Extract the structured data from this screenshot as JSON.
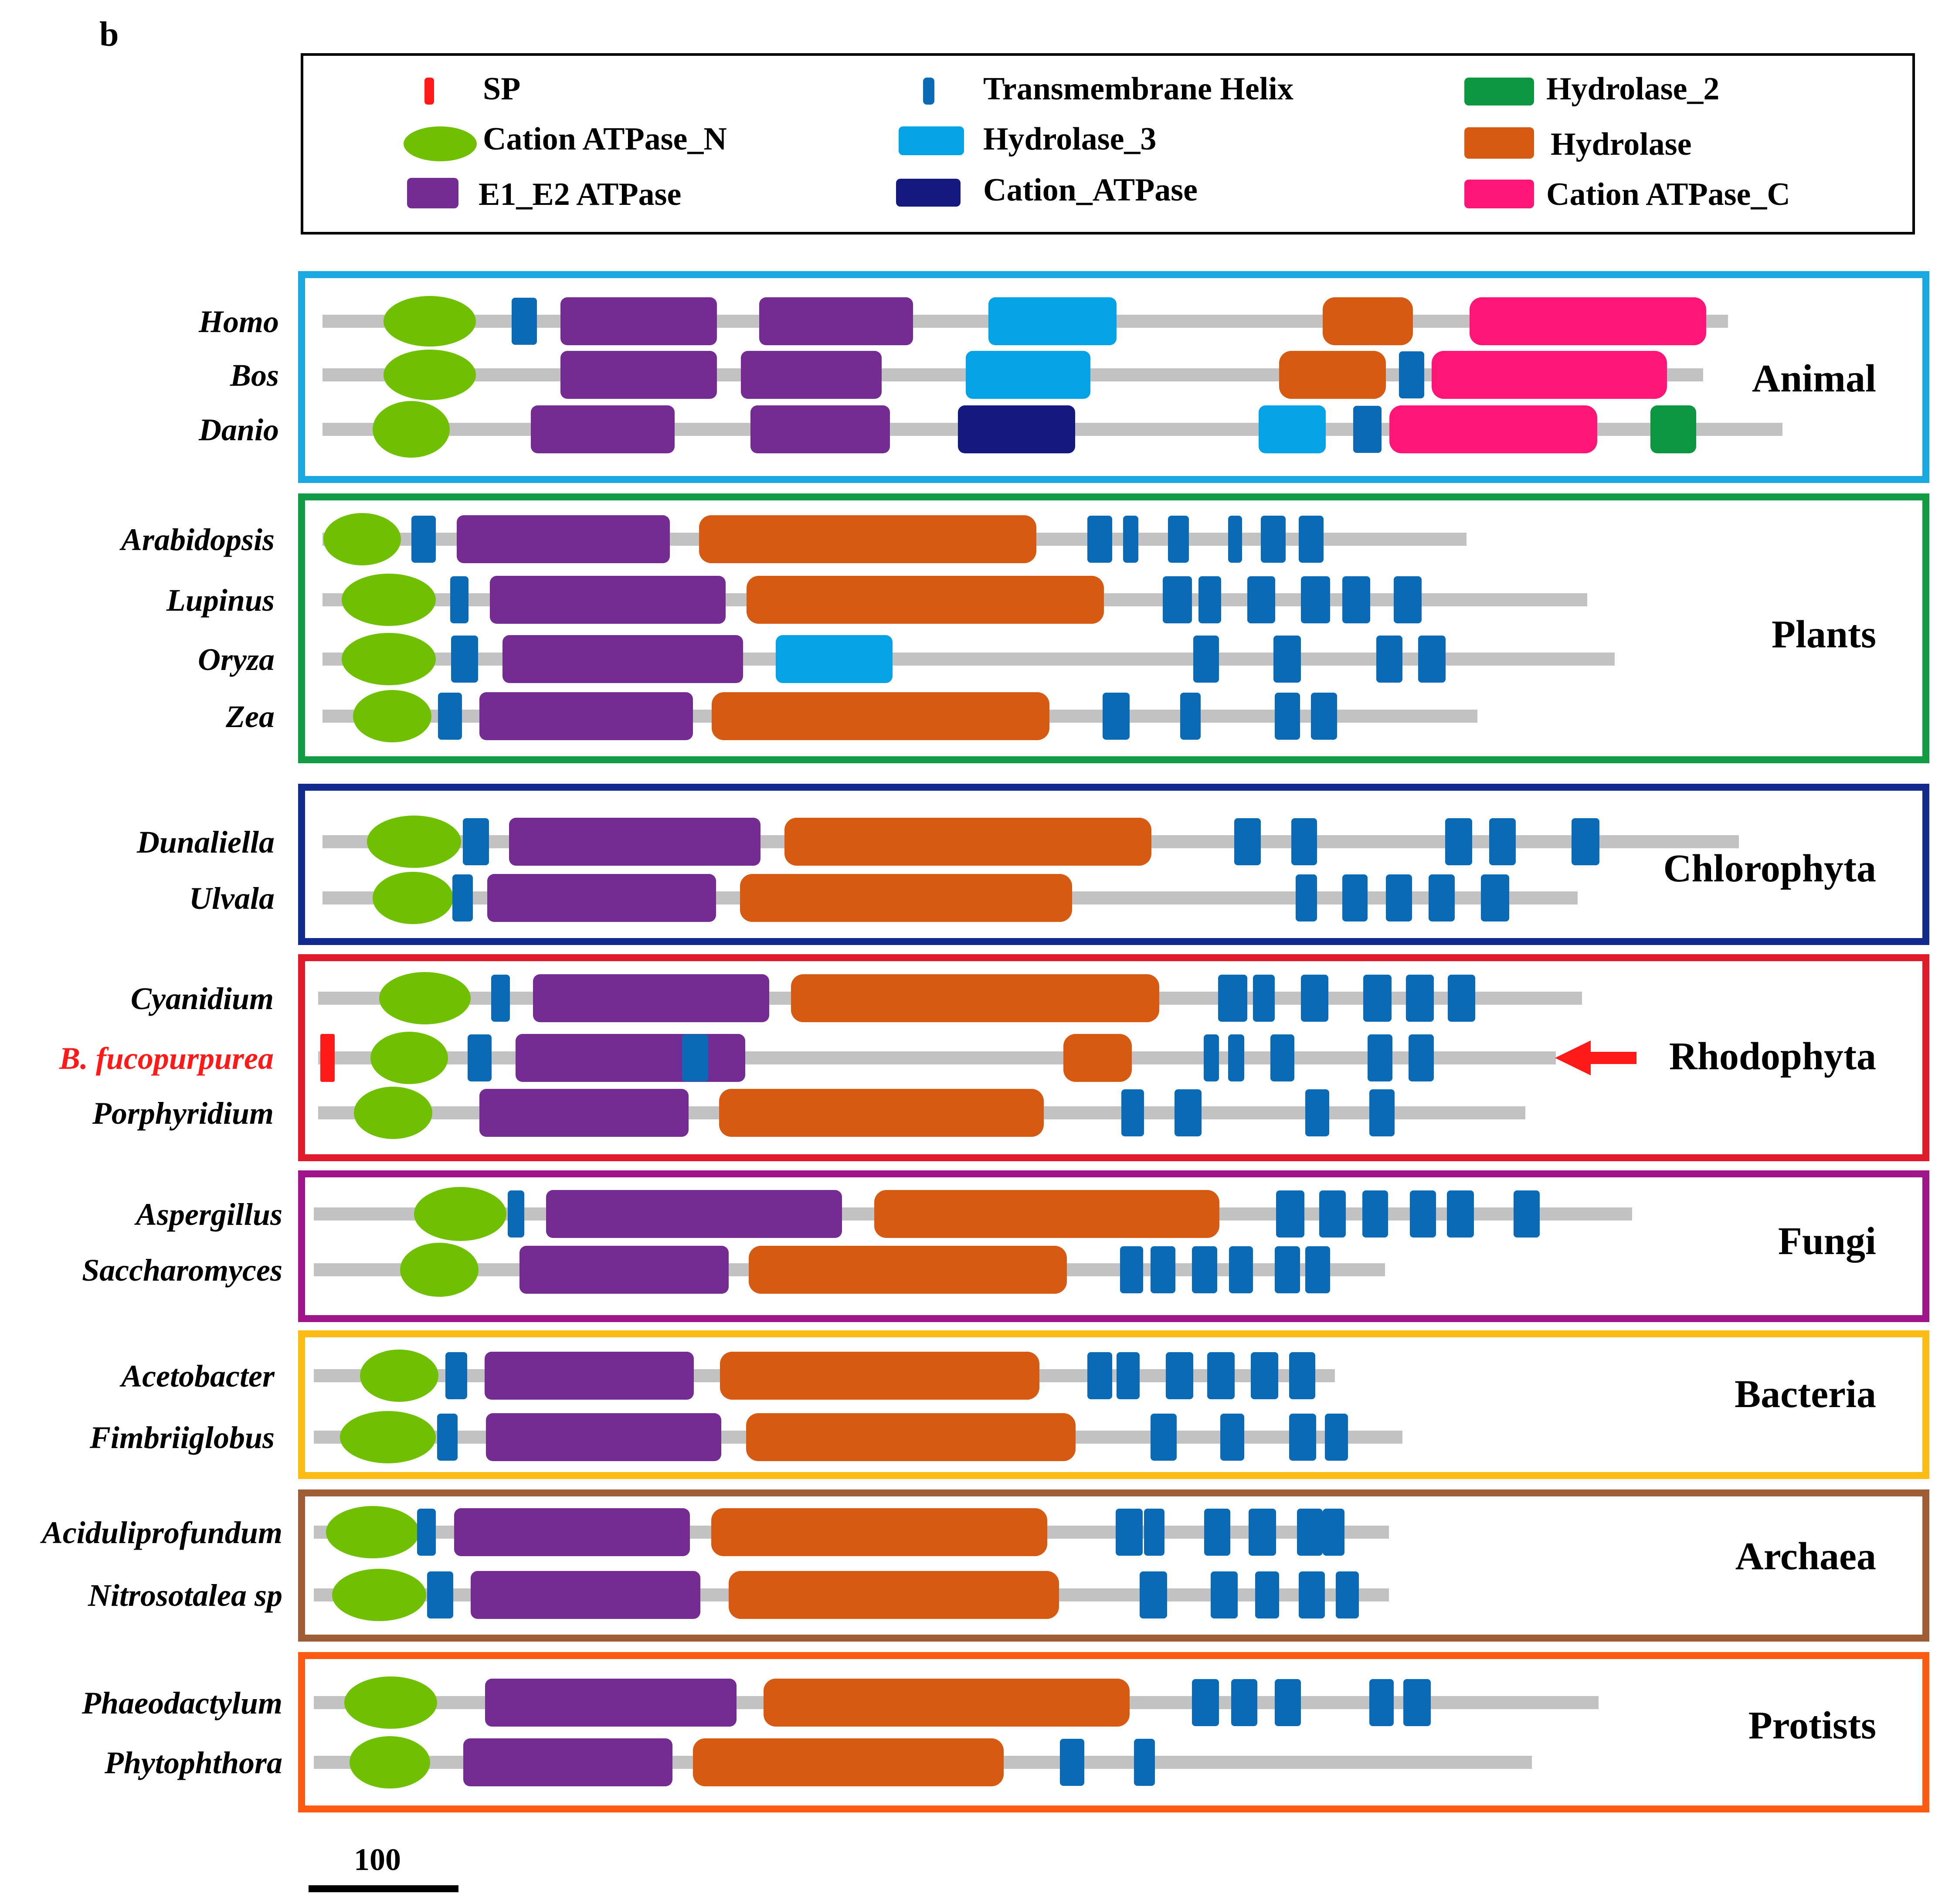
{
  "panel_label": "b",
  "colors": {
    "SP": "#ff1a1a",
    "Transmembrane Helix": "#0a6ab5",
    "Hydrolase_2": "#0c9640",
    "Cation ATPase_N": "#6fc000",
    "Hydrolase_3": "#06a2e6",
    "Hydrolase": "#d65a12",
    "E1_E2 ATPase": "#742c92",
    "Cation_ATPase": "#15197f",
    "Cation ATPase_C": "#ff1477",
    "backbone": "#c2c2c2",
    "highlight_text": "#ff1a1a",
    "arrow": "#ff1a1a"
  },
  "legend": [
    {
      "label": "SP",
      "shape": "rect"
    },
    {
      "label": "Cation ATPase_N",
      "shape": "ellipse"
    },
    {
      "label": "E1_E2 ATPase",
      "shape": "rect"
    },
    {
      "label": "Transmembrane Helix",
      "shape": "rect"
    },
    {
      "label": "Hydrolase_3",
      "shape": "rect"
    },
    {
      "label": "Cation_ATPase",
      "shape": "rect"
    },
    {
      "label": "Hydrolase_2",
      "shape": "rect"
    },
    {
      "label": "Hydrolase",
      "shape": "rect"
    },
    {
      "label": "Cation ATPase_C",
      "shape": "rect"
    }
  ],
  "scale_bar": {
    "label": "100"
  },
  "highlight_species": "B. fucopurpurea",
  "groups": [
    {
      "name": "Animal",
      "border": "#1aa8e0",
      "species": [
        {
          "name": "Homo",
          "domains": [
            "Cation ATPase_N",
            "Transmembrane Helix",
            "E1_E2 ATPase",
            "E1_E2 ATPase",
            "Hydrolase_3",
            "Hydrolase",
            "Cation ATPase_C"
          ]
        },
        {
          "name": "Bos",
          "domains": [
            "Cation ATPase_N",
            "E1_E2 ATPase",
            "E1_E2 ATPase",
            "Hydrolase_3",
            "Hydrolase",
            "Transmembrane Helix",
            "Cation ATPase_C"
          ]
        },
        {
          "name": "Danio",
          "domains": [
            "Cation ATPase_N",
            "E1_E2 ATPase",
            "E1_E2 ATPase",
            "Cation_ATPase",
            "Hydrolase_3",
            "Transmembrane Helix",
            "Cation ATPase_C",
            "Hydrolase_2"
          ]
        }
      ]
    },
    {
      "name": "Plants",
      "border": "#129a44",
      "species": [
        {
          "name": "Arabidopsis",
          "domains": [
            "Cation ATPase_N",
            "Transmembrane Helix",
            "E1_E2 ATPase",
            "Hydrolase",
            "Transmembrane Helix",
            "Transmembrane Helix",
            "Transmembrane Helix",
            "Transmembrane Helix",
            "Transmembrane Helix",
            "Transmembrane Helix"
          ]
        },
        {
          "name": "Lupinus",
          "domains": [
            "Cation ATPase_N",
            "Transmembrane Helix",
            "E1_E2 ATPase",
            "Hydrolase",
            "Transmembrane Helix",
            "Transmembrane Helix",
            "Transmembrane Helix",
            "Transmembrane Helix",
            "Transmembrane Helix",
            "Transmembrane Helix"
          ]
        },
        {
          "name": "Oryza",
          "domains": [
            "Cation ATPase_N",
            "Transmembrane Helix",
            "E1_E2 ATPase",
            "Hydrolase_3",
            "Transmembrane Helix",
            "Transmembrane Helix",
            "Transmembrane Helix",
            "Transmembrane Helix"
          ]
        },
        {
          "name": "Zea",
          "domains": [
            "Cation ATPase_N",
            "Transmembrane Helix",
            "E1_E2 ATPase",
            "Hydrolase",
            "Transmembrane Helix",
            "Transmembrane Helix",
            "Transmembrane Helix",
            "Transmembrane Helix"
          ]
        }
      ]
    },
    {
      "name": "Chlorophyta",
      "border": "#122a8c",
      "species": [
        {
          "name": "Dunaliella",
          "domains": [
            "Cation ATPase_N",
            "Transmembrane Helix",
            "E1_E2 ATPase",
            "Hydrolase",
            "Transmembrane Helix",
            "Transmembrane Helix",
            "Transmembrane Helix",
            "Transmembrane Helix",
            "Transmembrane Helix"
          ]
        },
        {
          "name": "Ulvala",
          "domains": [
            "Cation ATPase_N",
            "Transmembrane Helix",
            "E1_E2 ATPase",
            "Hydrolase",
            "Transmembrane Helix",
            "Transmembrane Helix",
            "Transmembrane Helix",
            "Transmembrane Helix",
            "Transmembrane Helix"
          ]
        }
      ]
    },
    {
      "name": "Rhodophyta",
      "border": "#e01a2b",
      "species": [
        {
          "name": "Cyanidium",
          "domains": [
            "Cation ATPase_N",
            "Transmembrane Helix",
            "E1_E2 ATPase",
            "Hydrolase",
            "Transmembrane Helix",
            "Transmembrane Helix",
            "Transmembrane Helix",
            "Transmembrane Helix",
            "Transmembrane Helix",
            "Transmembrane Helix"
          ]
        },
        {
          "name": "B. fucopurpurea",
          "domains": [
            "SP",
            "Cation ATPase_N",
            "Transmembrane Helix",
            "E1_E2 ATPase",
            "Transmembrane Helix",
            "Hydrolase",
            "Transmembrane Helix",
            "Transmembrane Helix",
            "Transmembrane Helix",
            "Transmembrane Helix",
            "Transmembrane Helix"
          ]
        },
        {
          "name": "Porphyridium",
          "domains": [
            "Cation ATPase_N",
            "E1_E2 ATPase",
            "Hydrolase",
            "Transmembrane Helix",
            "Transmembrane Helix",
            "Transmembrane Helix",
            "Transmembrane Helix"
          ]
        }
      ]
    },
    {
      "name": "Fungi",
      "border": "#a0148a",
      "species": [
        {
          "name": "Aspergillus",
          "domains": [
            "Cation ATPase_N",
            "Transmembrane Helix",
            "E1_E2 ATPase",
            "Hydrolase",
            "Transmembrane Helix",
            "Transmembrane Helix",
            "Transmembrane Helix",
            "Transmembrane Helix",
            "Transmembrane Helix",
            "Transmembrane Helix"
          ]
        },
        {
          "name": "Saccharomyces",
          "domains": [
            "Cation ATPase_N",
            "E1_E2 ATPase",
            "Hydrolase",
            "Transmembrane Helix",
            "Transmembrane Helix",
            "Transmembrane Helix",
            "Transmembrane Helix",
            "Transmembrane Helix",
            "Transmembrane Helix"
          ]
        }
      ]
    },
    {
      "name": "Bacteria",
      "border": "#fbbc14",
      "species": [
        {
          "name": "Acetobacter",
          "domains": [
            "Cation ATPase_N",
            "Transmembrane Helix",
            "E1_E2 ATPase",
            "Hydrolase",
            "Transmembrane Helix",
            "Transmembrane Helix",
            "Transmembrane Helix",
            "Transmembrane Helix",
            "Transmembrane Helix",
            "Transmembrane Helix"
          ]
        },
        {
          "name": "Fimbriiglobus",
          "domains": [
            "Cation ATPase_N",
            "Transmembrane Helix",
            "E1_E2 ATPase",
            "Hydrolase",
            "Transmembrane Helix",
            "Transmembrane Helix",
            "Transmembrane Helix",
            "Transmembrane Helix"
          ]
        }
      ]
    },
    {
      "name": "Archaea",
      "border": "#9e5d34",
      "species": [
        {
          "name": "Aciduliprofundum",
          "domains": [
            "Cation ATPase_N",
            "Transmembrane Helix",
            "E1_E2 ATPase",
            "Hydrolase",
            "Transmembrane Helix",
            "Transmembrane Helix",
            "Transmembrane Helix",
            "Transmembrane Helix",
            "Transmembrane Helix",
            "Transmembrane Helix"
          ]
        },
        {
          "name": "Nitrosotalea sp",
          "domains": [
            "Cation ATPase_N",
            "Transmembrane Helix",
            "E1_E2 ATPase",
            "Hydrolase",
            "Transmembrane Helix",
            "Transmembrane Helix",
            "Transmembrane Helix",
            "Transmembrane Helix",
            "Transmembrane Helix"
          ]
        }
      ]
    },
    {
      "name": "Protists",
      "border": "#ff5a14",
      "species": [
        {
          "name": "Phaeodactylum",
          "domains": [
            "Cation ATPase_N",
            "E1_E2 ATPase",
            "Hydrolase",
            "Transmembrane Helix",
            "Transmembrane Helix",
            "Transmembrane Helix",
            "Transmembrane Helix",
            "Transmembrane Helix"
          ]
        },
        {
          "name": "Phytophthora",
          "domains": [
            "Cation ATPase_N",
            "E1_E2 ATPase",
            "Hydrolase",
            "Transmembrane Helix",
            "Transmembrane Helix"
          ]
        }
      ]
    }
  ]
}
